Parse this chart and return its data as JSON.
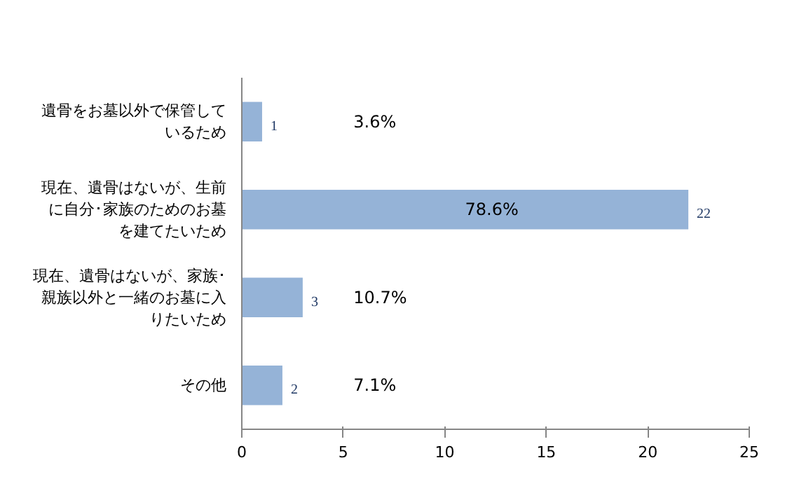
{
  "chart_data": {
    "type": "bar",
    "orientation": "horizontal",
    "categories": [
      "遺骨をお墓以外で保管しているため",
      "現在、遺骨はないが、生前に自分･家族のためのお墓を建てたいため",
      "現在、遺骨はないが、家族･親族以外と一緒のお墓に入りたいため",
      "その他"
    ],
    "values": [
      1,
      22,
      3,
      2
    ],
    "color": "#95b3d7",
    "data_labels": true,
    "xlim": [
      0,
      25
    ],
    "xticks": [
      0,
      5,
      10,
      15,
      20,
      25
    ],
    "grid": false,
    "annotations": [
      "3.6%",
      "78.6%",
      "10.7%",
      "7.1%"
    ]
  }
}
